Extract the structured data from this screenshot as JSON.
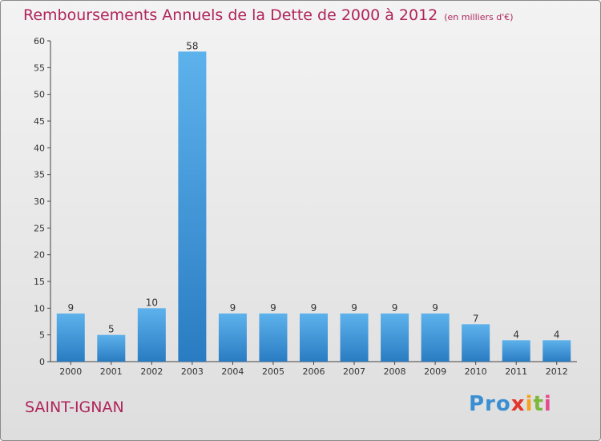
{
  "chart_data": {
    "type": "bar",
    "title": "Remboursements Annuels de la Dette de 2000 à 2012",
    "subtitle": "(en milliers d'€)",
    "categories": [
      "2000",
      "2001",
      "2002",
      "2003",
      "2004",
      "2005",
      "2006",
      "2007",
      "2008",
      "2009",
      "2010",
      "2011",
      "2012"
    ],
    "values": [
      9,
      5,
      10,
      58,
      9,
      9,
      9,
      9,
      9,
      9,
      7,
      4,
      4
    ],
    "ylim": [
      0,
      60
    ],
    "yticks": [
      0,
      5,
      10,
      15,
      20,
      25,
      30,
      35,
      40,
      45,
      50,
      55,
      60
    ],
    "grid": false,
    "bar_color": "#3a8fd2"
  },
  "commune": "SAINT-IGNAN",
  "logo": [
    "Pro",
    "x",
    "i",
    "t",
    "i"
  ],
  "colors": {
    "title": "#b0245a",
    "bar_top": "#5db2ec",
    "bar_bottom": "#2a7cc2"
  }
}
